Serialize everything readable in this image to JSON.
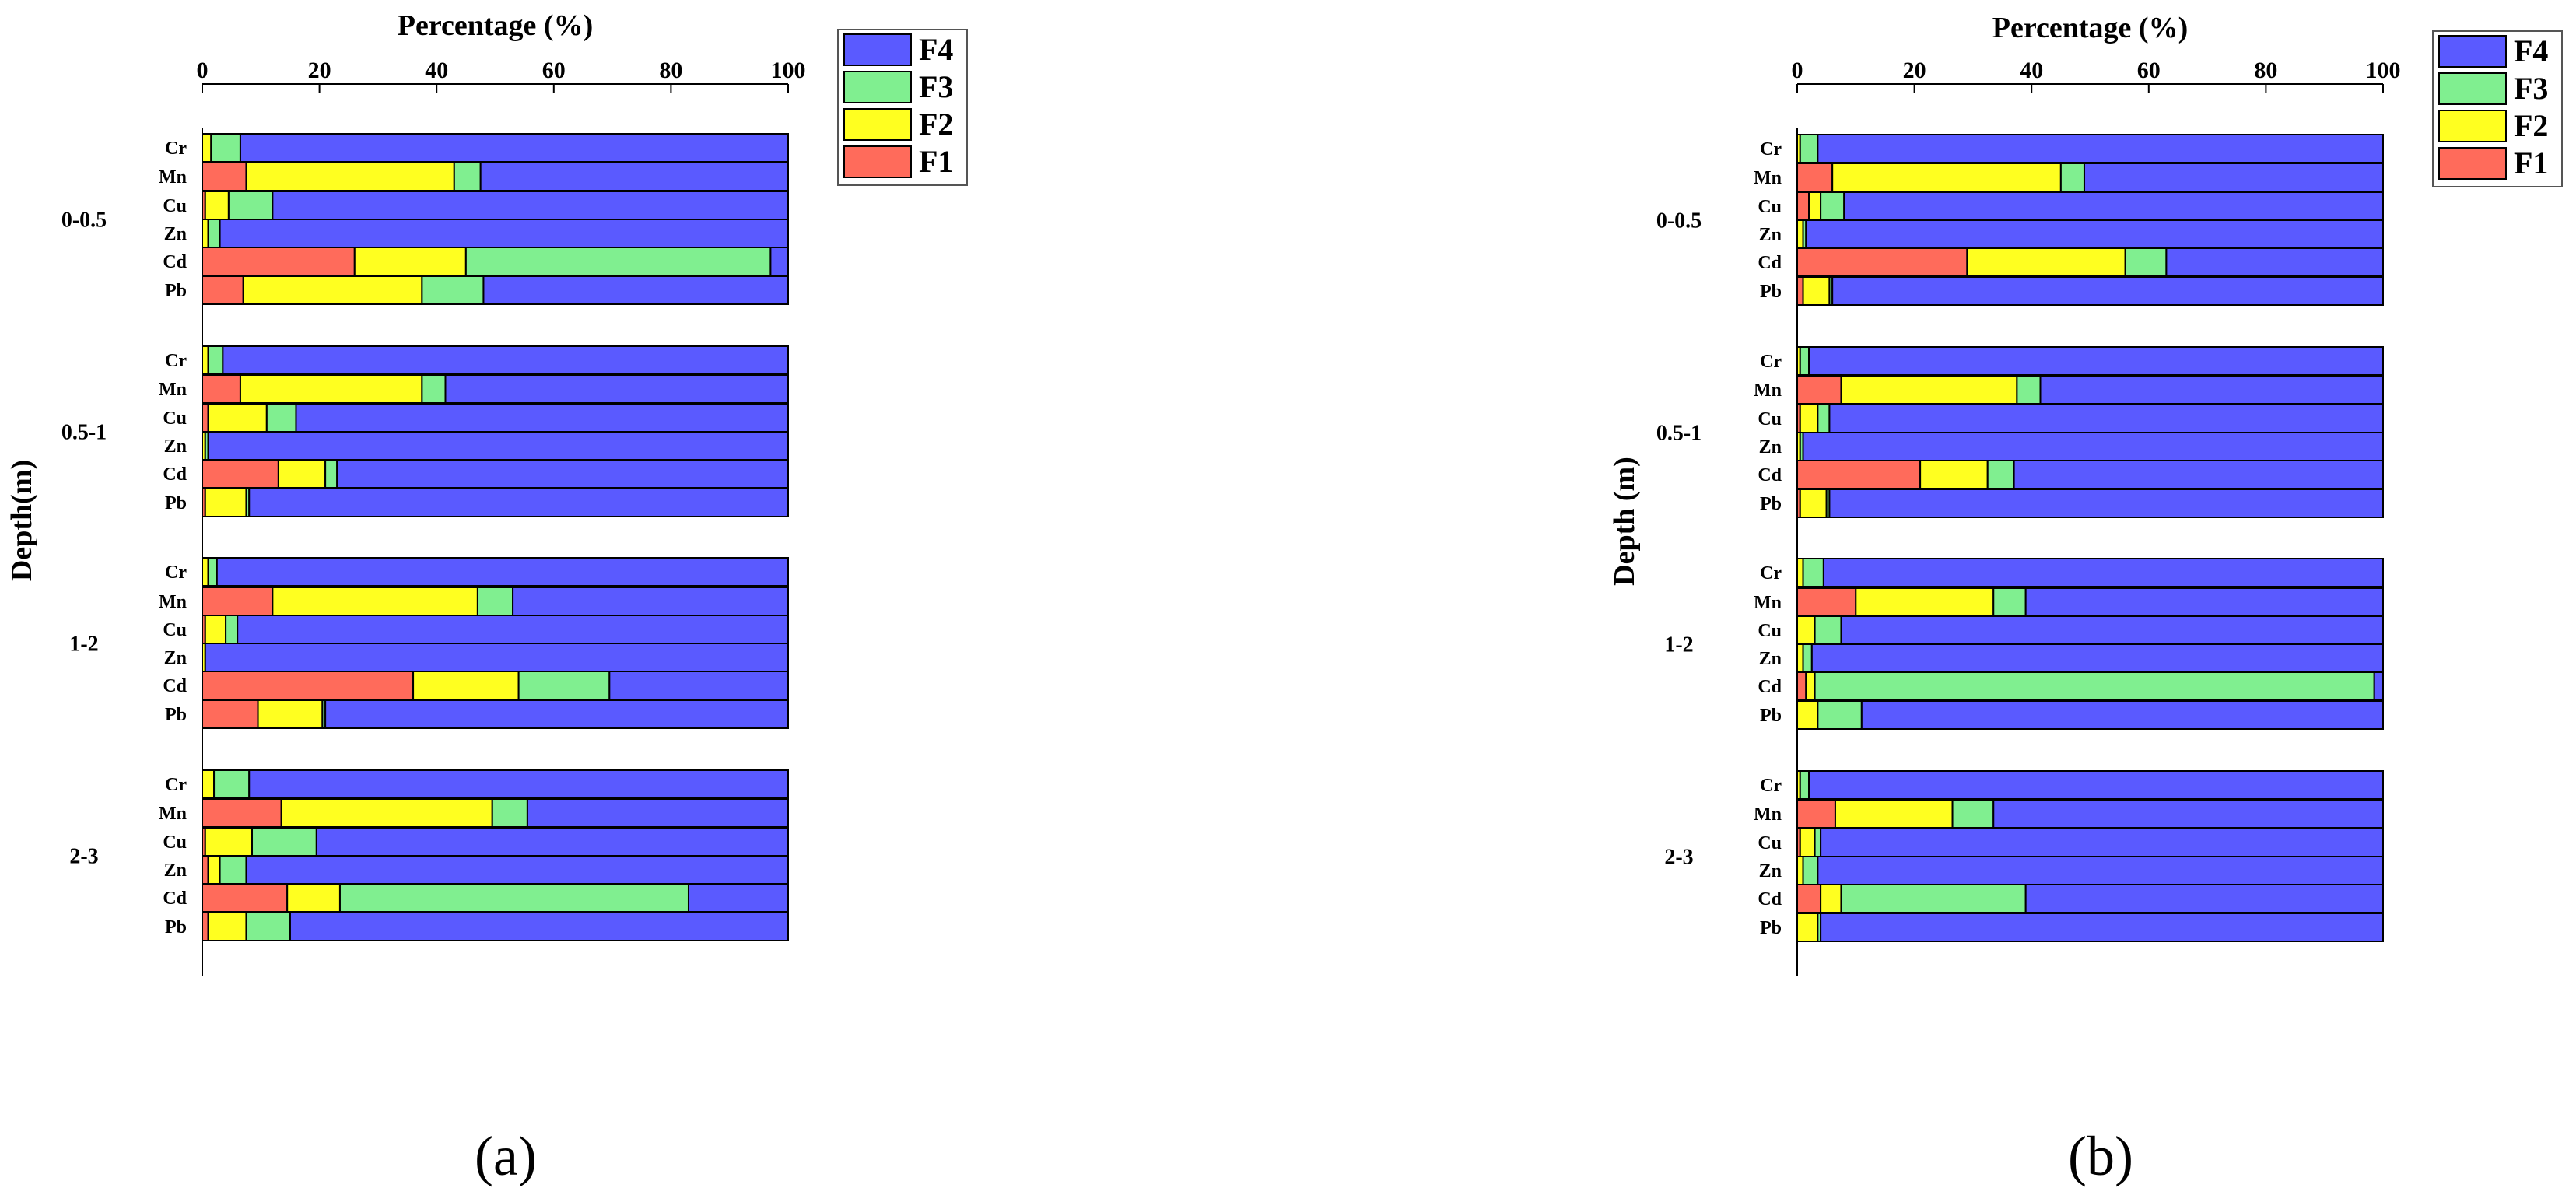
{
  "figure": {
    "panels": [
      "(a)",
      "(b)"
    ]
  },
  "chart_data": [
    {
      "type": "bar",
      "orientation": "horizontal",
      "stacked": true,
      "panel_label": "(a)",
      "xlabel": "Percentage (%)",
      "ylabel": "Depth(m)",
      "xlim": [
        0,
        100
      ],
      "xticks": [
        0,
        20,
        40,
        60,
        80,
        100
      ],
      "series_names": [
        "F1",
        "F2",
        "F3",
        "F4"
      ],
      "legend_order": [
        "F4",
        "F3",
        "F2",
        "F1"
      ],
      "legend_placement": "top-right",
      "groups": [
        {
          "depth": "0-0.5",
          "bars": [
            {
              "element": "Cr",
              "values": [
                0,
                1.5,
                5,
                93.5
              ]
            },
            {
              "element": "Mn",
              "values": [
                7.5,
                35.5,
                4.5,
                52.5
              ]
            },
            {
              "element": "Cu",
              "values": [
                0.5,
                4,
                7.5,
                88
              ]
            },
            {
              "element": "Zn",
              "values": [
                0,
                1,
                2,
                97
              ]
            },
            {
              "element": "Cd",
              "values": [
                26,
                19,
                52,
                3
              ]
            },
            {
              "element": "Pb",
              "values": [
                7,
                30.5,
                10.5,
                52
              ]
            }
          ]
        },
        {
          "depth": "0.5-1",
          "bars": [
            {
              "element": "Cr",
              "values": [
                0,
                1,
                2.5,
                96.5
              ]
            },
            {
              "element": "Mn",
              "values": [
                6.5,
                31,
                4,
                58.5
              ]
            },
            {
              "element": "Cu",
              "values": [
                1,
                10,
                5,
                84
              ]
            },
            {
              "element": "Zn",
              "values": [
                0,
                0.5,
                0.5,
                99
              ]
            },
            {
              "element": "Cd",
              "values": [
                13,
                8,
                2,
                77
              ]
            },
            {
              "element": "Pb",
              "values": [
                0.5,
                7,
                0.5,
                92
              ]
            }
          ]
        },
        {
          "depth": "1-2",
          "bars": [
            {
              "element": "Cr",
              "values": [
                0,
                1,
                1.5,
                97.5
              ]
            },
            {
              "element": "Mn",
              "values": [
                12,
                35,
                6,
                47
              ]
            },
            {
              "element": "Cu",
              "values": [
                0.5,
                3.5,
                2,
                94
              ]
            },
            {
              "element": "Zn",
              "values": [
                0,
                0.5,
                0,
                99.5
              ]
            },
            {
              "element": "Cd",
              "values": [
                36,
                18,
                15.5,
                30.5
              ]
            },
            {
              "element": "Pb",
              "values": [
                9.5,
                11,
                0.5,
                79
              ]
            }
          ]
        },
        {
          "depth": "2-3",
          "bars": [
            {
              "element": "Cr",
              "values": [
                0,
                2,
                6,
                92
              ]
            },
            {
              "element": "Mn",
              "values": [
                13.5,
                36,
                6,
                44.5
              ]
            },
            {
              "element": "Cu",
              "values": [
                0.5,
                8,
                11,
                80.5
              ]
            },
            {
              "element": "Zn",
              "values": [
                1,
                2,
                4.5,
                92.5
              ]
            },
            {
              "element": "Cd",
              "values": [
                14.5,
                9,
                59.5,
                17
              ]
            },
            {
              "element": "Pb",
              "values": [
                1,
                6.5,
                7.5,
                85
              ]
            }
          ]
        }
      ]
    },
    {
      "type": "bar",
      "orientation": "horizontal",
      "stacked": true,
      "panel_label": "(b)",
      "xlabel": "Percentage (%)",
      "ylabel": "Depth (m)",
      "xlim": [
        0,
        100
      ],
      "xticks": [
        0,
        20,
        40,
        60,
        80,
        100
      ],
      "series_names": [
        "F1",
        "F2",
        "F3",
        "F4"
      ],
      "legend_order": [
        "F4",
        "F3",
        "F2",
        "F1"
      ],
      "legend_placement": "top-right",
      "groups": [
        {
          "depth": "0-0.5",
          "bars": [
            {
              "element": "Cr",
              "values": [
                0,
                0.5,
                3,
                96.5
              ]
            },
            {
              "element": "Mn",
              "values": [
                6,
                39,
                4,
                51
              ]
            },
            {
              "element": "Cu",
              "values": [
                2,
                2,
                4,
                92
              ]
            },
            {
              "element": "Zn",
              "values": [
                0,
                1,
                0.5,
                98.5
              ]
            },
            {
              "element": "Cd",
              "values": [
                29,
                27,
                7,
                37
              ]
            },
            {
              "element": "Pb",
              "values": [
                1,
                4.5,
                0.5,
                94
              ]
            }
          ]
        },
        {
          "depth": "0.5-1",
          "bars": [
            {
              "element": "Cr",
              "values": [
                0,
                0.5,
                1.5,
                98
              ]
            },
            {
              "element": "Mn",
              "values": [
                7.5,
                30,
                4,
                58.5
              ]
            },
            {
              "element": "Cu",
              "values": [
                0.5,
                3,
                2,
                94.5
              ]
            },
            {
              "element": "Zn",
              "values": [
                0,
                0.5,
                0.5,
                99
              ]
            },
            {
              "element": "Cd",
              "values": [
                21,
                11.5,
                4.5,
                63
              ]
            },
            {
              "element": "Pb",
              "values": [
                0.5,
                4.5,
                0.5,
                94.5
              ]
            }
          ]
        },
        {
          "depth": "1-2",
          "bars": [
            {
              "element": "Cr",
              "values": [
                0,
                1,
                3.5,
                95.5
              ]
            },
            {
              "element": "Mn",
              "values": [
                10,
                23.5,
                5.5,
                61
              ]
            },
            {
              "element": "Cu",
              "values": [
                0,
                3,
                4.5,
                92.5
              ]
            },
            {
              "element": "Zn",
              "values": [
                0,
                1,
                1.5,
                97.5
              ]
            },
            {
              "element": "Cd",
              "values": [
                1.5,
                1.5,
                95.5,
                1.5
              ]
            },
            {
              "element": "Pb",
              "values": [
                0,
                3.5,
                7.5,
                89
              ]
            }
          ]
        },
        {
          "depth": "2-3",
          "bars": [
            {
              "element": "Cr",
              "values": [
                0,
                0.5,
                1.5,
                98
              ]
            },
            {
              "element": "Mn",
              "values": [
                6.5,
                20,
                7,
                66.5
              ]
            },
            {
              "element": "Cu",
              "values": [
                0.5,
                2.5,
                1,
                96
              ]
            },
            {
              "element": "Zn",
              "values": [
                0,
                1,
                2.5,
                96.5
              ]
            },
            {
              "element": "Cd",
              "values": [
                4,
                3.5,
                31.5,
                61
              ]
            },
            {
              "element": "Pb",
              "values": [
                0,
                3.5,
                0.5,
                96
              ]
            }
          ]
        }
      ]
    }
  ],
  "colors": {
    "F1": "#ff6b5b",
    "F2": "#ffff20",
    "F3": "#80ef90",
    "F4": "#5a5aff",
    "outline": "#000000"
  }
}
